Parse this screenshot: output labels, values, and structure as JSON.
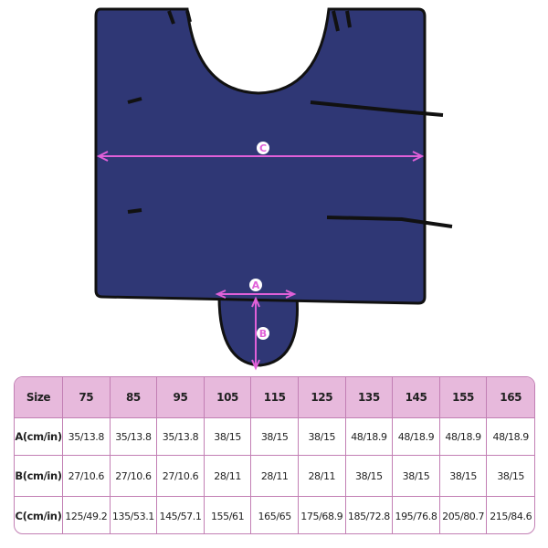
{
  "diagram": {
    "labels": {
      "a": "A",
      "b": "B",
      "c": "C"
    },
    "colors": {
      "fabric": "#2f3775",
      "arrow": "#e060d8",
      "binding": "#111111"
    }
  },
  "table": {
    "header": [
      "Size",
      "75",
      "85",
      "95",
      "105",
      "115",
      "125",
      "135",
      "145",
      "155",
      "165"
    ],
    "rows": [
      [
        "A(cm/in)",
        "35/13.8",
        "35/13.8",
        "35/13.8",
        "38/15",
        "38/15",
        "38/15",
        "48/18.9",
        "48/18.9",
        "48/18.9",
        "48/18.9"
      ],
      [
        "B(cm/in)",
        "27/10.6",
        "27/10.6",
        "27/10.6",
        "28/11",
        "28/11",
        "28/11",
        "38/15",
        "38/15",
        "38/15",
        "38/15"
      ],
      [
        "C(cm/in)",
        "125/49.2",
        "135/53.1",
        "145/57.1",
        "155/61",
        "165/65",
        "175/68.9",
        "185/72.8",
        "195/76.8",
        "205/80.7",
        "215/84.6"
      ]
    ],
    "colors": {
      "header_bg": "#e7b9dc",
      "border": "#c27fb4"
    }
  }
}
